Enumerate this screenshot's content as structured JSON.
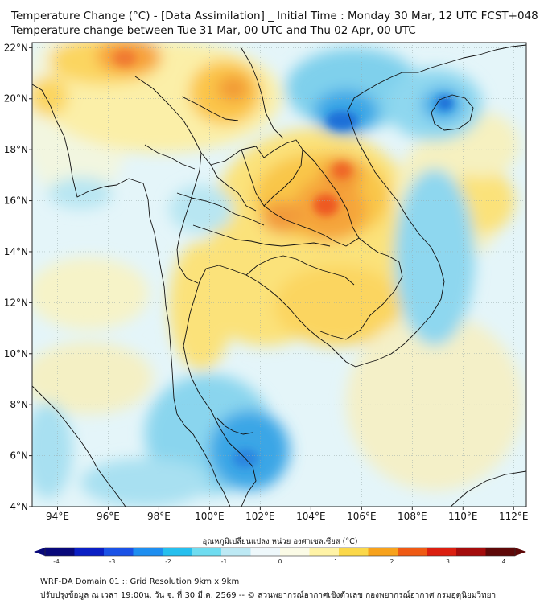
{
  "title_line1": "Temperature Change (°C) - [Data Assimilation] _ Initial Time : Monday 30 Mar, 12 UTC FCST+048",
  "title_line2": "Temperature change between Tue 31 Mar, 00 UTC and Thu 02 Apr, 00 UTC",
  "map": {
    "region": "Mainland Southeast Asia",
    "lon_range": [
      93,
      112.5
    ],
    "lat_range": [
      4,
      22.2
    ],
    "lon_ticks": [
      "94°E",
      "96°E",
      "98°E",
      "100°E",
      "102°E",
      "104°E",
      "106°E",
      "108°E",
      "110°E",
      "112°E"
    ],
    "lat_ticks": [
      "22°N",
      "20°N",
      "18°N",
      "16°N",
      "14°N",
      "12°N",
      "10°N",
      "8°N",
      "6°N",
      "4°N"
    ],
    "field": "temperature change",
    "units": "°C",
    "warm_centers": [
      {
        "lon": 104.7,
        "lat": 15.8,
        "value": 2.3
      },
      {
        "lon": 105.3,
        "lat": 17.1,
        "value": 2.0
      },
      {
        "lon": 96.7,
        "lat": 21.4,
        "value": 1.9
      },
      {
        "lon": 100.8,
        "lat": 20.0,
        "value": 1.7
      }
    ],
    "cold_centers": [
      {
        "lon": 104.9,
        "lat": 19.0,
        "value": -2.0
      },
      {
        "lon": 109.3,
        "lat": 19.8,
        "value": -1.8
      },
      {
        "lon": 101.2,
        "lat": 5.8,
        "value": -1.7
      }
    ]
  },
  "colorbar": {
    "title": "อุณหภูมิเปลี่ยนแปลง หน่วย องศาเซลเซียส (°C)",
    "min": -4,
    "max": 4,
    "tick_labels": [
      "-4",
      "-3",
      "-2",
      "-1",
      "0",
      "1",
      "2",
      "3",
      "4"
    ],
    "colors": [
      "#08087a",
      "#0a1fc4",
      "#1a52e6",
      "#1e8ef0",
      "#26bfee",
      "#6fdcf0",
      "#bde9f4",
      "#eef8fb",
      "#fbfbe6",
      "#fff3a6",
      "#fbd84a",
      "#f7a21c",
      "#ef5a14",
      "#db1f10",
      "#a40c0c",
      "#5e0808"
    ]
  },
  "footer_line1": "WRF-DA Domain 01 :: Grid Resolution 9km x 9km",
  "footer_line2": "ปรับปรุงข้อมูล ณ เวลา 19:00น. วัน จ. ที่ 30 มี.ค. 2569 -- © ส่วนพยากรณ์อากาศเชิงตัวเลข กองพยากรณ์อากาศ กรมอุตุนิยมวิทยา"
}
